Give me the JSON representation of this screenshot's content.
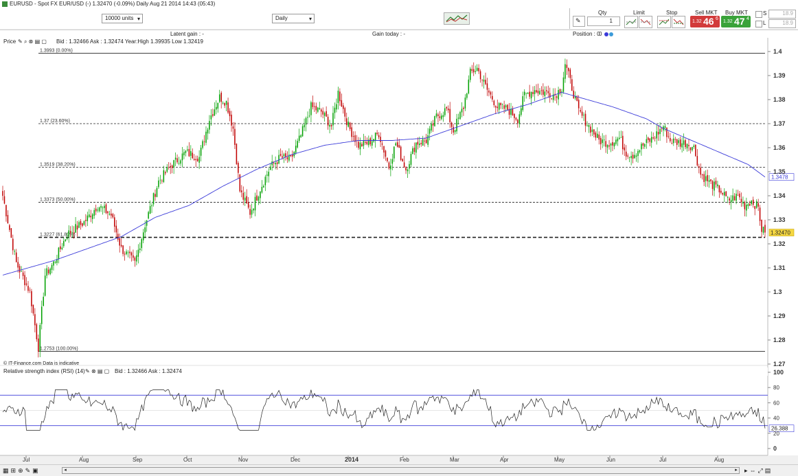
{
  "window": {
    "title": "EURUSD - Spot FX EUR/USD (-)   1.32470 (-0.09%)   Daily  Aug 21 2014 14:43 (05:43)"
  },
  "toolbar": {
    "units_value": "10000 units",
    "period_value": "Daily",
    "qty_label": "Qty",
    "qty_value": "1",
    "limit_label": "Limit",
    "stop_label": "Stop",
    "sell_label": "Sell MKT",
    "sell_small": "1.32",
    "sell_big": "46",
    "sell_sup": "6",
    "buy_label": "Buy MKT",
    "buy_small": "1.32",
    "buy_big": "47",
    "buy_sup": "4",
    "s_label": "S",
    "l_label": "L",
    "s_value": "18.9",
    "l_value": "18.9"
  },
  "infobar": {
    "latent_gain": "Latent gain : -",
    "gain_today": "Gain today : -",
    "position": "Position : 0",
    "position_value": "0"
  },
  "price_panel": {
    "label": "Price",
    "info": "Bid : 1.32466 Ask : 1.32474 Year:High 1.39935 Low 1.32419",
    "footer": "© IT-Finance.com  Data is indicative",
    "ma_label": "1.3478",
    "last_label": "1.32470",
    "colors": {
      "up": "#00a000",
      "down": "#c00000",
      "ma": "#3b3bd9",
      "last_bg": "#f5d742"
    }
  },
  "rsi_panel": {
    "label": "Relative strength index (RSI) (14)",
    "info": "Bid : 1.32466 Ask : 1.32474",
    "last_label": "26.388"
  },
  "chart_data": {
    "type": "candlestick",
    "x_ticks": [
      "Jul",
      "Aug",
      "Sep",
      "Oct",
      "Nov",
      "Dec",
      "2014",
      "Feb",
      "Mar",
      "Apr",
      "May",
      "Jun",
      "Jul",
      "Aug"
    ],
    "price_ticks": [
      "1.4",
      "1.39",
      "1.38",
      "1.37",
      "1.36",
      "1.35",
      "1.34",
      "1.33",
      "1.32",
      "1.31",
      "1.3",
      "1.29",
      "1.28",
      "1.27"
    ],
    "price_ylim": [
      1.271,
      1.403
    ],
    "fibonacci": [
      {
        "label": "1.3993 (0.00%)",
        "value": 1.3993
      },
      {
        "label": "1.37 (23.60%)",
        "value": 1.37
      },
      {
        "label": "1.3519 (38.20%)",
        "value": 1.3519
      },
      {
        "label": "1.3373 (50.00%)",
        "value": 1.3373
      },
      {
        "label": "1.3227 (61.80%)",
        "value": 1.3227
      },
      {
        "label": "1.2753 (100.00%)",
        "value": 1.2753
      }
    ],
    "close_anchors": [
      [
        0,
        1.34
      ],
      [
        8,
        1.312
      ],
      [
        16,
        1.3
      ],
      [
        21,
        1.277
      ],
      [
        25,
        1.307
      ],
      [
        30,
        1.312
      ],
      [
        38,
        1.324
      ],
      [
        48,
        1.329
      ],
      [
        56,
        1.336
      ],
      [
        64,
        1.332
      ],
      [
        70,
        1.318
      ],
      [
        78,
        1.312
      ],
      [
        84,
        1.328
      ],
      [
        92,
        1.346
      ],
      [
        100,
        1.353
      ],
      [
        108,
        1.358
      ],
      [
        116,
        1.356
      ],
      [
        122,
        1.372
      ],
      [
        128,
        1.381
      ],
      [
        132,
        1.379
      ],
      [
        136,
        1.368
      ],
      [
        140,
        1.342
      ],
      [
        146,
        1.333
      ],
      [
        152,
        1.343
      ],
      [
        158,
        1.352
      ],
      [
        164,
        1.356
      ],
      [
        170,
        1.355
      ],
      [
        176,
        1.365
      ],
      [
        182,
        1.377
      ],
      [
        188,
        1.375
      ],
      [
        194,
        1.369
      ],
      [
        198,
        1.383
      ],
      [
        204,
        1.369
      ],
      [
        210,
        1.361
      ],
      [
        216,
        1.362
      ],
      [
        222,
        1.366
      ],
      [
        228,
        1.352
      ],
      [
        232,
        1.362
      ],
      [
        238,
        1.351
      ],
      [
        244,
        1.362
      ],
      [
        250,
        1.363
      ],
      [
        256,
        1.373
      ],
      [
        262,
        1.376
      ],
      [
        266,
        1.367
      ],
      [
        272,
        1.377
      ],
      [
        276,
        1.391
      ],
      [
        280,
        1.393
      ],
      [
        286,
        1.384
      ],
      [
        292,
        1.377
      ],
      [
        298,
        1.376
      ],
      [
        304,
        1.372
      ],
      [
        308,
        1.382
      ],
      [
        314,
        1.384
      ],
      [
        320,
        1.383
      ],
      [
        326,
        1.382
      ],
      [
        330,
        1.385
      ],
      [
        332,
        1.395
      ],
      [
        336,
        1.385
      ],
      [
        340,
        1.375
      ],
      [
        346,
        1.369
      ],
      [
        352,
        1.363
      ],
      [
        358,
        1.362
      ],
      [
        364,
        1.364
      ],
      [
        368,
        1.358
      ],
      [
        372,
        1.357
      ],
      [
        378,
        1.361
      ],
      [
        384,
        1.364
      ],
      [
        390,
        1.369
      ],
      [
        394,
        1.363
      ],
      [
        400,
        1.362
      ],
      [
        404,
        1.362
      ],
      [
        408,
        1.36
      ],
      [
        412,
        1.349
      ],
      [
        418,
        1.345
      ],
      [
        424,
        1.342
      ],
      [
        428,
        1.338
      ],
      [
        434,
        1.34
      ],
      [
        438,
        1.336
      ],
      [
        442,
        1.338
      ],
      [
        446,
        1.335
      ],
      [
        448,
        1.326
      ],
      [
        450,
        1.3247
      ]
    ],
    "ma_anchors": [
      [
        0,
        1.307
      ],
      [
        15,
        1.31
      ],
      [
        30,
        1.313
      ],
      [
        50,
        1.318
      ],
      [
        70,
        1.323
      ],
      [
        90,
        1.331
      ],
      [
        110,
        1.336
      ],
      [
        130,
        1.344
      ],
      [
        150,
        1.351
      ],
      [
        170,
        1.357
      ],
      [
        190,
        1.361
      ],
      [
        210,
        1.363
      ],
      [
        230,
        1.363
      ],
      [
        250,
        1.364
      ],
      [
        270,
        1.369
      ],
      [
        290,
        1.374
      ],
      [
        310,
        1.378
      ],
      [
        330,
        1.383
      ],
      [
        340,
        1.381
      ],
      [
        360,
        1.377
      ],
      [
        380,
        1.372
      ],
      [
        390,
        1.368
      ],
      [
        400,
        1.365
      ],
      [
        410,
        1.362
      ],
      [
        420,
        1.359
      ],
      [
        430,
        1.356
      ],
      [
        440,
        1.353
      ],
      [
        450,
        1.3478
      ]
    ],
    "rsi_ticks": [
      "100",
      "80",
      "60",
      "40",
      "20",
      "0"
    ],
    "rsi_ylim": [
      0,
      100
    ],
    "rsi_levels": [
      30,
      70
    ],
    "last_price": 1.3247,
    "ma_last": 1.3478,
    "rsi_last": 26.388
  }
}
